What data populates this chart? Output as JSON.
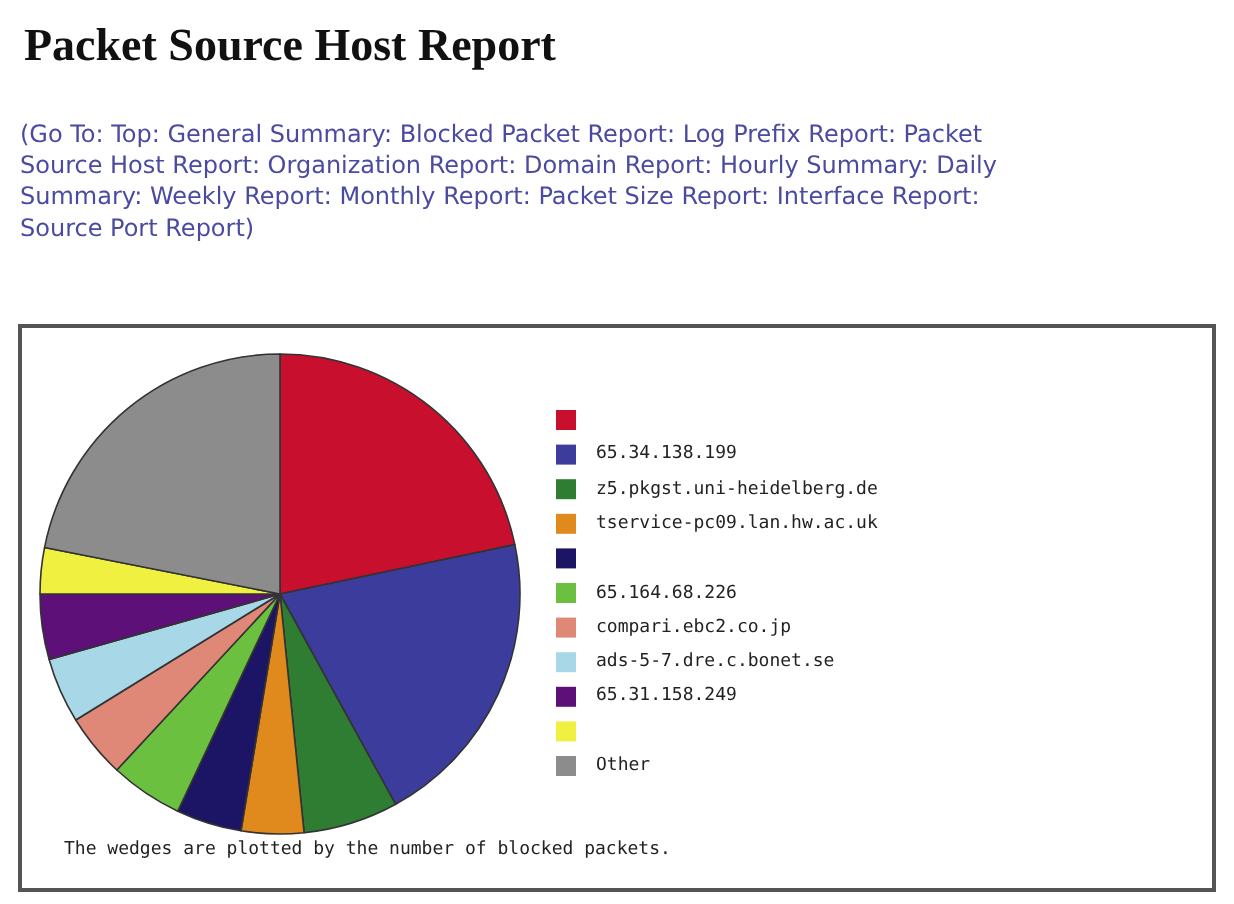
{
  "chart_data": {
    "type": "pie",
    "title": "Packet Source Host Report",
    "subtitle": "(Go To: Top: General Summary: Blocked Packet Report: Log Prefix Report: Packet Source Host Report: Organization Report: Domain Report: Hourly Summary: Daily Summary: Weekly Report: Monthly Report: Packet Size Report: Interface Report: Source Port Report)",
    "categories": [
      null,
      "65.34.138.199",
      "z5.pkgst.uni-heidelberg.de",
      "tservice-pc09.lan.hw.ac.uk",
      null,
      "65.164.68.226",
      "compari.ebc2.co.jp",
      "ads-5-7.dre.c.bonet.se",
      "65.31.158.249",
      null,
      "Other"
    ],
    "values": [
      21.7,
      20.3,
      6.4,
      4.2,
      4.4,
      4.9,
      4.3,
      4.4,
      4.4,
      3.1,
      21.9
    ],
    "colors": [
      "#c8102e",
      "#3c3c9c",
      "#2e7d32",
      "#e08a1e",
      "#1c1464",
      "#6cc040",
      "#e08878",
      "#a8d8e8",
      "#5c1078",
      "#f0f040",
      "#8c8c8c"
    ],
    "legend": "right",
    "annotations": [
      "The wedges are plotted by the number of blocked packets."
    ]
  }
}
